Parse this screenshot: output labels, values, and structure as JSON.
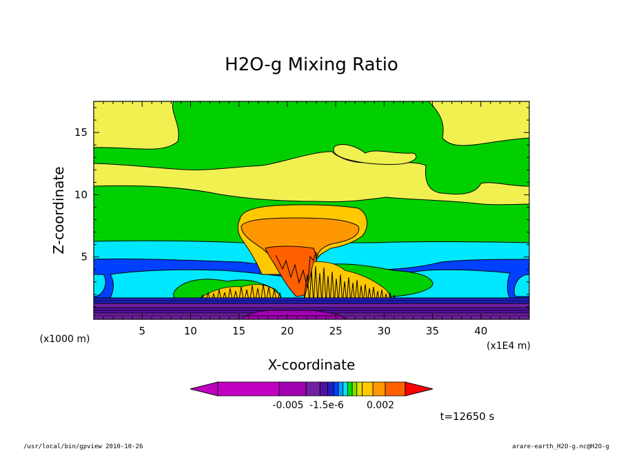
{
  "chart_data": {
    "type": "heatmap",
    "title": "H2O-g Mixing Ratio",
    "xlabel": "X-coordinate",
    "ylabel": "Z-coordinate",
    "x_unit_note": "(x1E4 m)",
    "y_unit_note": "(x1000 m)",
    "xlim": [
      0,
      45
    ],
    "ylim": [
      0,
      17.5
    ],
    "x_ticks": [
      5,
      10,
      15,
      20,
      25,
      30,
      35,
      40
    ],
    "y_ticks": [
      5,
      10,
      15
    ],
    "x_tick_labels": [
      "5",
      "10",
      "15",
      "20",
      "25",
      "30",
      "35",
      "40"
    ],
    "y_tick_labels": [
      "5",
      "10",
      "15"
    ],
    "grid": false,
    "colorbar": {
      "position": "bottom",
      "colors": [
        "#c000c0",
        "#a000b0",
        "#7020a0",
        "#5010a0",
        "#2020c0",
        "#0040ff",
        "#00a0ff",
        "#00e0ff",
        "#00e000",
        "#80e000",
        "#e0e000",
        "#ffc800",
        "#ff9800",
        "#ff6000",
        "#ff0000"
      ],
      "tick_labels": [
        "-0.005",
        "-1.5e-6",
        "0.002"
      ]
    },
    "time_label": "t=12650 s",
    "regions": [
      {
        "name": "background-yellow",
        "color": "#f0f050"
      },
      {
        "name": "background-green",
        "color": "#00d000"
      },
      {
        "name": "cyan-band",
        "color": "#00e8ff"
      },
      {
        "name": "blue-band",
        "color": "#0040ff"
      },
      {
        "name": "anvil-yellow",
        "color": "#ffc800"
      },
      {
        "name": "anvil-orange",
        "color": "#ff9800"
      },
      {
        "name": "core-orange",
        "color": "#ff6000"
      },
      {
        "name": "surface-purple",
        "color": "#7020a0"
      }
    ]
  },
  "footer": {
    "left": "/usr/local/bin/gpview  2010-10-26",
    "right": "arare-earth_H2O-g.nc@H2O-g"
  }
}
